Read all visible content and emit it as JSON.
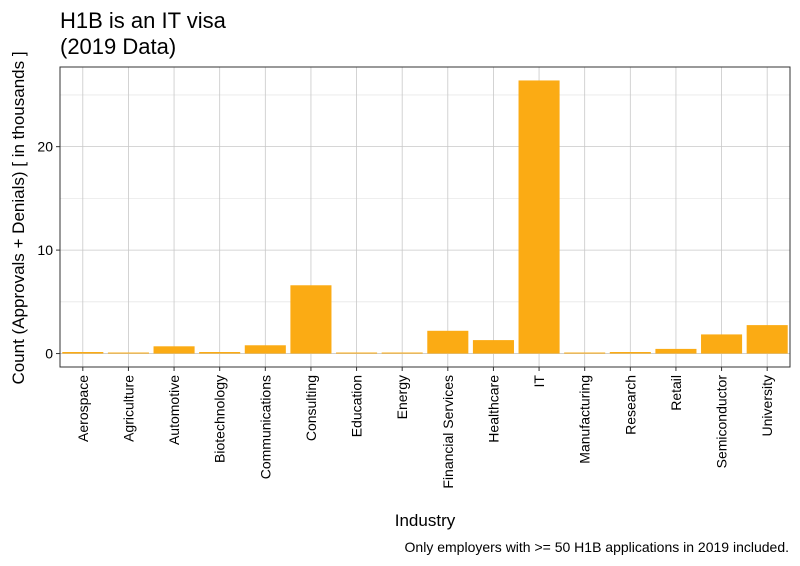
{
  "colors": {
    "bar": "#FBAB14",
    "grid_major": "#c8c8c8",
    "grid_minor": "#e8e8e8",
    "panel_border": "#333333"
  },
  "chart_data": {
    "type": "bar",
    "title_lines": [
      "H1B is an IT visa",
      "(2019 Data)"
    ],
    "xlabel": "Industry",
    "ylabel": "Count (Approvals + Denials) [ in thousands ]",
    "caption": "Only employers with >= 50 H1B applications in 2019 included.",
    "categories": [
      "Aerospace",
      "Agriculture",
      "Automotive",
      "Biotechnology",
      "Communications",
      "Consulting",
      "Education",
      "Energy",
      "Financial Services",
      "Healthcare",
      "IT",
      "Manufacturing",
      "Research",
      "Retail",
      "Semiconductor",
      "University"
    ],
    "values": [
      0.15,
      0.1,
      0.7,
      0.15,
      0.8,
      6.6,
      0.1,
      0.1,
      2.2,
      1.3,
      26.4,
      0.1,
      0.15,
      0.45,
      1.85,
      2.75
    ],
    "ylim": [
      -1.3,
      27.7
    ],
    "yticks": [
      0,
      10,
      20
    ],
    "grid": true,
    "legend": "none"
  }
}
